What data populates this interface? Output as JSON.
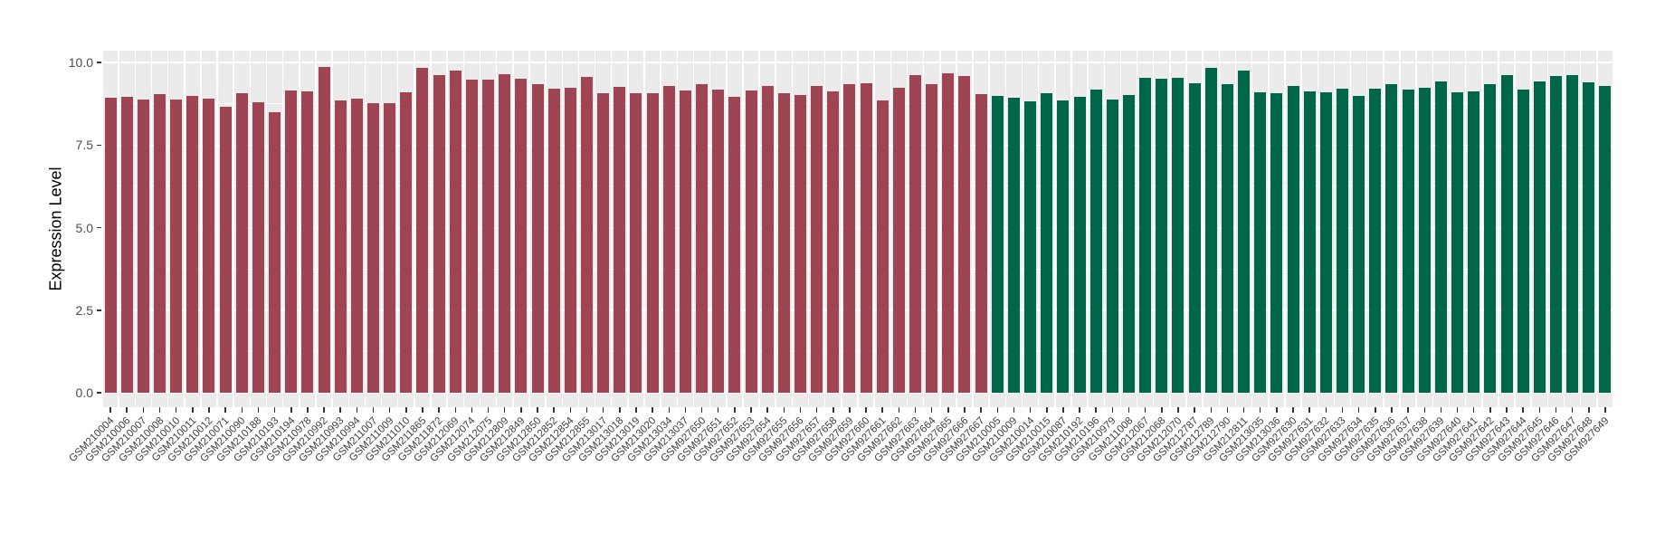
{
  "chart_data": {
    "type": "bar",
    "title": "",
    "xlabel": "",
    "ylabel": "Expression Level",
    "ylim": [
      0,
      10.4
    ],
    "ytick_values": [
      0,
      2.5,
      5,
      7.5,
      10
    ],
    "ytick_labels": [
      "0.0",
      "2.5",
      "5.0",
      "7.5",
      "10.0"
    ],
    "minor_grid_values": [
      1.25,
      3.75,
      6.25,
      8.75
    ],
    "grid": "on",
    "legend_position": "none",
    "panel_background": "#EBEBEB",
    "gridline_color": "#FFFFFF",
    "x_label_rotation_deg": 45,
    "series": [
      {
        "name": "group-1-red",
        "color": "#9E4452",
        "categories": [
          "GSM210004",
          "GSM210006",
          "GSM210007",
          "GSM210008",
          "GSM210010",
          "GSM210011",
          "GSM210012",
          "GSM210071",
          "GSM210090",
          "GSM210188",
          "GSM210193",
          "GSM210194",
          "GSM210978",
          "GSM210992",
          "GSM210993",
          "GSM210994",
          "GSM211007",
          "GSM211009",
          "GSM211010",
          "GSM211865",
          "GSM211872",
          "GSM212069",
          "GSM212074",
          "GSM212075",
          "GSM212809",
          "GSM212849",
          "GSM212850",
          "GSM212852",
          "GSM212854",
          "GSM212855",
          "GSM213017",
          "GSM213018",
          "GSM213019",
          "GSM213020",
          "GSM213034",
          "GSM213037",
          "GSM927650",
          "GSM927651",
          "GSM927652",
          "GSM927653",
          "GSM927654",
          "GSM927655",
          "GSM927656",
          "GSM927657",
          "GSM927658",
          "GSM927659",
          "GSM927660",
          "GSM927661",
          "GSM927662",
          "GSM927663",
          "GSM927664",
          "GSM927665",
          "GSM927666",
          "GSM927667"
        ],
        "values": [
          8.92,
          8.97,
          8.88,
          9.03,
          8.88,
          9.0,
          8.9,
          8.65,
          9.08,
          8.8,
          8.49,
          9.15,
          9.13,
          9.85,
          8.85,
          8.9,
          8.78,
          8.77,
          9.09,
          9.84,
          9.61,
          9.74,
          9.49,
          9.49,
          9.65,
          9.52,
          9.35,
          9.2,
          9.22,
          9.56,
          9.08,
          9.26,
          9.06,
          9.06,
          9.3,
          9.15,
          9.33,
          9.18,
          8.97,
          9.15,
          9.29,
          9.08,
          9.01,
          9.29,
          9.12,
          9.33,
          9.38,
          8.85,
          9.22,
          9.61,
          9.35,
          9.67,
          9.58,
          9.03
        ]
      },
      {
        "name": "group-2-green",
        "color": "#00664A",
        "categories": [
          "GSM210005",
          "GSM210009",
          "GSM210014",
          "GSM210015",
          "GSM210087",
          "GSM210192",
          "GSM210196",
          "GSM210979",
          "GSM211008",
          "GSM212067",
          "GSM212068",
          "GSM212070",
          "GSM212787",
          "GSM212789",
          "GSM212790",
          "GSM212811",
          "GSM213035",
          "GSM213036",
          "GSM927630",
          "GSM927631",
          "GSM927632",
          "GSM927633",
          "GSM927634",
          "GSM927635",
          "GSM927636",
          "GSM927637",
          "GSM927638",
          "GSM927639",
          "GSM927640",
          "GSM927641",
          "GSM927642",
          "GSM927643",
          "GSM927644",
          "GSM927645",
          "GSM927646",
          "GSM927647",
          "GSM927648",
          "GSM927649"
        ],
        "values": [
          8.99,
          8.92,
          8.83,
          9.08,
          8.85,
          8.95,
          9.17,
          8.88,
          9.01,
          9.53,
          9.5,
          9.53,
          9.38,
          9.84,
          9.35,
          9.74,
          9.1,
          9.06,
          9.29,
          9.13,
          9.1,
          9.21,
          8.99,
          9.21,
          9.33,
          9.18,
          9.23,
          9.42,
          9.1,
          9.12,
          9.35,
          9.63,
          9.19,
          9.42,
          9.58,
          9.61,
          9.4,
          9.29
        ]
      }
    ]
  }
}
